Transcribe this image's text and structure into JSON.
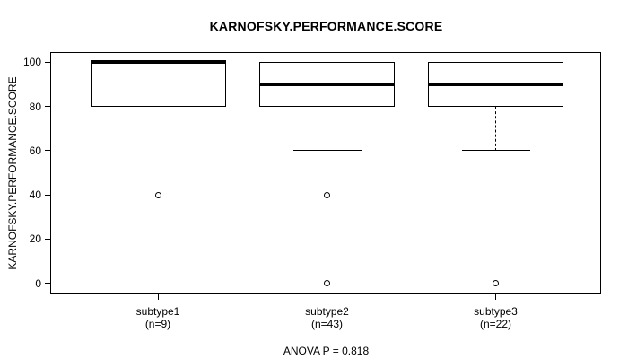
{
  "chart_data": {
    "type": "boxplot",
    "title": "KARNOFSKY.PERFORMANCE.SCORE",
    "ylabel": "KARNOFSKY.PERFORMANCE.SCORE",
    "xlabel": "",
    "footer": "ANOVA P = 0.818",
    "ylim": [
      0,
      100
    ],
    "yticks": [
      0,
      20,
      40,
      60,
      80,
      100
    ],
    "grid": false,
    "legend": null,
    "groups": [
      {
        "label": "subtype1",
        "sublabel": "(n=9)",
        "n": 9,
        "median": 100,
        "q1": 80,
        "q3": 100,
        "whisker_low": 80,
        "whisker_high": 100,
        "outliers": [
          40
        ]
      },
      {
        "label": "subtype2",
        "sublabel": "(n=43)",
        "n": 43,
        "median": 90,
        "q1": 80,
        "q3": 100,
        "whisker_low": 60,
        "whisker_high": 100,
        "outliers": [
          40,
          0
        ]
      },
      {
        "label": "subtype3",
        "sublabel": "(n=22)",
        "n": 22,
        "median": 90,
        "q1": 80,
        "q3": 100,
        "whisker_low": 60,
        "whisker_high": 100,
        "outliers": [
          0
        ]
      }
    ],
    "colors": {
      "line": "#000000",
      "box_fill": "#ffffff",
      "background": "#ffffff"
    }
  }
}
